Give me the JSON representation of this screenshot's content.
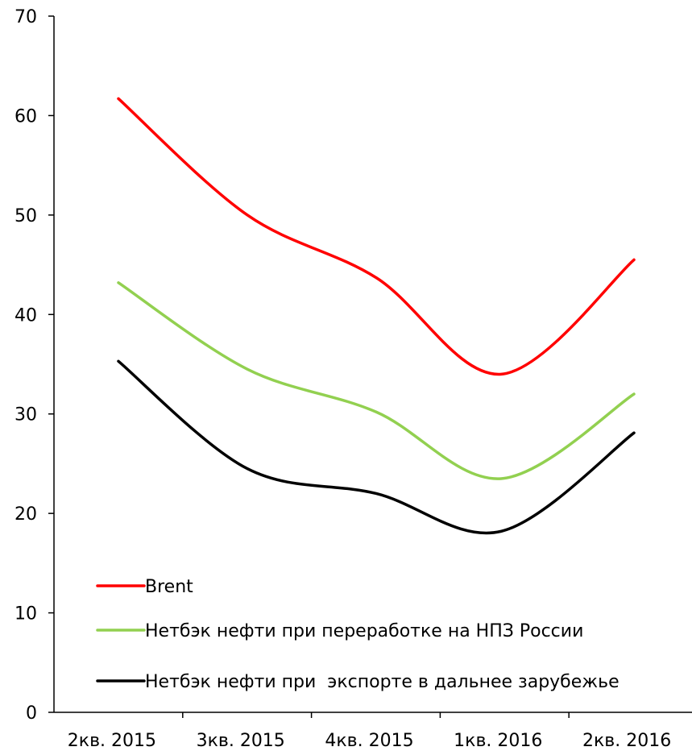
{
  "chart_data": {
    "type": "line",
    "title": "",
    "xlabel": "",
    "ylabel": "",
    "categories": [
      "2кв. 2015",
      "3кв. 2015",
      "4кв. 2015",
      "1кв. 2016",
      "2кв. 2016"
    ],
    "ylim": [
      0,
      70
    ],
    "yticks": [
      0,
      10,
      20,
      30,
      40,
      50,
      60,
      70
    ],
    "grid": false,
    "legend_position": "bottom-left",
    "series": [
      {
        "name": "Brent",
        "color": "#ff0000",
        "values": [
          61.7,
          50.0,
          43.7,
          34.0,
          45.5
        ]
      },
      {
        "name": "Нетбэк нефти при переработке на НПЗ России",
        "color": "#92d050",
        "values": [
          43.2,
          34.5,
          30.2,
          23.5,
          32.0
        ]
      },
      {
        "name": "Нетбэк нефти при  экспорте в дальнее зарубежье",
        "color": "#000000",
        "values": [
          35.3,
          24.5,
          22.0,
          18.2,
          28.1
        ]
      }
    ]
  }
}
